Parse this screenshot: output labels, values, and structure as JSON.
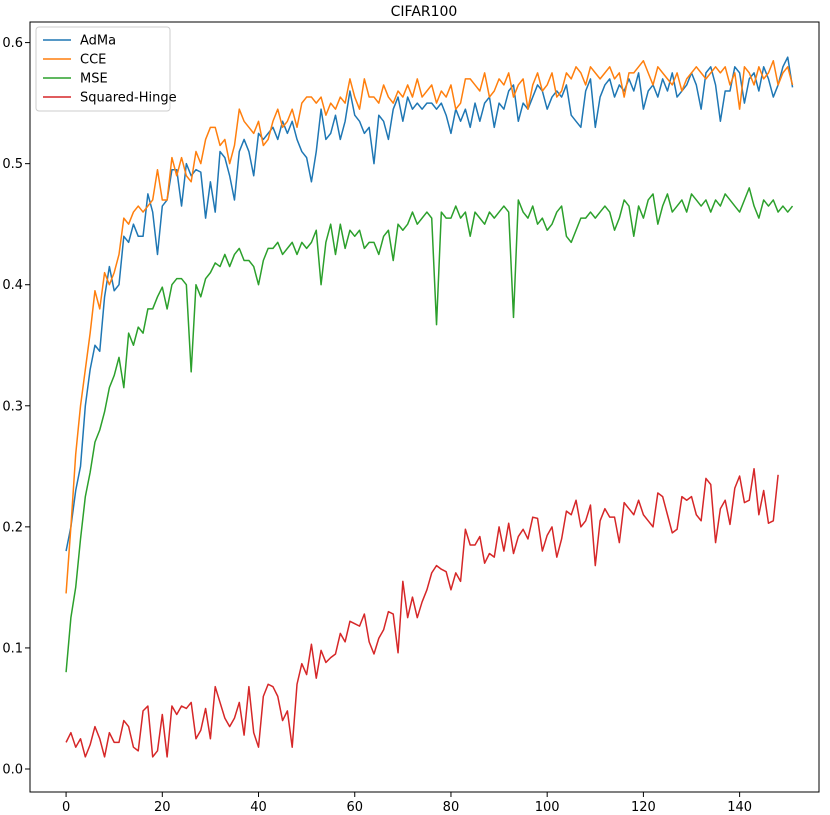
{
  "chart_data": {
    "type": "line",
    "title": "CIFAR100",
    "xlabel": "",
    "ylabel": "",
    "xlim": [
      -7.5,
      156.5
    ],
    "ylim": [
      -0.019,
      0.617
    ],
    "xticks": [
      0,
      20,
      40,
      60,
      80,
      100,
      120,
      140
    ],
    "yticks": [
      0.0,
      0.1,
      0.2,
      0.3,
      0.4,
      0.5,
      0.6
    ],
    "grid": false,
    "legend": "top-left",
    "colors": {
      "AdMa": "#1f77b4",
      "CCE": "#ff7f0e",
      "MSE": "#2ca02c",
      "Squared-Hinge": "#d62728"
    },
    "series": [
      {
        "name": "AdMa",
        "values": [
          0.18,
          0.2,
          0.23,
          0.25,
          0.3,
          0.33,
          0.35,
          0.345,
          0.39,
          0.415,
          0.395,
          0.4,
          0.44,
          0.435,
          0.45,
          0.44,
          0.44,
          0.475,
          0.46,
          0.425,
          0.465,
          0.47,
          0.495,
          0.495,
          0.465,
          0.5,
          0.49,
          0.495,
          0.493,
          0.455,
          0.485,
          0.46,
          0.51,
          0.505,
          0.49,
          0.47,
          0.51,
          0.52,
          0.51,
          0.49,
          0.525,
          0.52,
          0.525,
          0.53,
          0.52,
          0.535,
          0.525,
          0.535,
          0.52,
          0.51,
          0.505,
          0.485,
          0.51,
          0.545,
          0.52,
          0.525,
          0.54,
          0.52,
          0.535,
          0.56,
          0.54,
          0.535,
          0.525,
          0.53,
          0.5,
          0.54,
          0.535,
          0.52,
          0.545,
          0.555,
          0.535,
          0.555,
          0.545,
          0.55,
          0.545,
          0.55,
          0.55,
          0.545,
          0.55,
          0.54,
          0.525,
          0.545,
          0.535,
          0.545,
          0.53,
          0.55,
          0.535,
          0.55,
          0.555,
          0.53,
          0.55,
          0.545,
          0.56,
          0.565,
          0.535,
          0.55,
          0.545,
          0.555,
          0.565,
          0.56,
          0.545,
          0.555,
          0.56,
          0.555,
          0.565,
          0.54,
          0.535,
          0.53,
          0.56,
          0.57,
          0.53,
          0.555,
          0.565,
          0.57,
          0.555,
          0.565,
          0.56,
          0.57,
          0.56,
          0.575,
          0.545,
          0.56,
          0.565,
          0.555,
          0.57,
          0.56,
          0.575,
          0.555,
          0.56,
          0.565,
          0.575,
          0.565,
          0.545,
          0.575,
          0.58,
          0.565,
          0.535,
          0.56,
          0.56,
          0.58,
          0.575,
          0.55,
          0.57,
          0.575,
          0.56,
          0.58,
          0.57,
          0.555,
          0.565,
          0.58,
          0.588,
          0.563
        ]
      },
      {
        "name": "CCE",
        "values": [
          0.145,
          0.2,
          0.26,
          0.3,
          0.33,
          0.36,
          0.395,
          0.38,
          0.41,
          0.4,
          0.41,
          0.425,
          0.455,
          0.45,
          0.46,
          0.465,
          0.46,
          0.465,
          0.47,
          0.495,
          0.47,
          0.47,
          0.505,
          0.49,
          0.505,
          0.49,
          0.485,
          0.51,
          0.5,
          0.52,
          0.53,
          0.53,
          0.515,
          0.52,
          0.5,
          0.515,
          0.545,
          0.535,
          0.53,
          0.525,
          0.535,
          0.515,
          0.52,
          0.535,
          0.545,
          0.53,
          0.535,
          0.545,
          0.53,
          0.55,
          0.555,
          0.555,
          0.55,
          0.555,
          0.54,
          0.55,
          0.545,
          0.555,
          0.55,
          0.57,
          0.555,
          0.545,
          0.57,
          0.555,
          0.555,
          0.55,
          0.565,
          0.555,
          0.55,
          0.56,
          0.555,
          0.565,
          0.555,
          0.57,
          0.555,
          0.56,
          0.565,
          0.55,
          0.56,
          0.555,
          0.565,
          0.545,
          0.55,
          0.57,
          0.57,
          0.565,
          0.56,
          0.575,
          0.555,
          0.56,
          0.57,
          0.565,
          0.575,
          0.555,
          0.565,
          0.57,
          0.545,
          0.565,
          0.575,
          0.56,
          0.565,
          0.575,
          0.555,
          0.56,
          0.575,
          0.57,
          0.58,
          0.575,
          0.565,
          0.58,
          0.575,
          0.57,
          0.575,
          0.58,
          0.57,
          0.575,
          0.555,
          0.575,
          0.575,
          0.58,
          0.585,
          0.575,
          0.565,
          0.58,
          0.575,
          0.57,
          0.565,
          0.575,
          0.56,
          0.57,
          0.575,
          0.58,
          0.575,
          0.57,
          0.575,
          0.58,
          0.575,
          0.58,
          0.565,
          0.575,
          0.545,
          0.58,
          0.575,
          0.565,
          0.58,
          0.57,
          0.575,
          0.585,
          0.565,
          0.575,
          0.58,
          0.565
        ]
      },
      {
        "name": "MSE",
        "values": [
          0.08,
          0.125,
          0.15,
          0.19,
          0.225,
          0.245,
          0.27,
          0.28,
          0.295,
          0.315,
          0.325,
          0.34,
          0.315,
          0.36,
          0.35,
          0.365,
          0.36,
          0.38,
          0.38,
          0.39,
          0.398,
          0.38,
          0.4,
          0.405,
          0.405,
          0.4,
          0.328,
          0.4,
          0.39,
          0.405,
          0.41,
          0.418,
          0.415,
          0.425,
          0.415,
          0.425,
          0.43,
          0.42,
          0.42,
          0.415,
          0.4,
          0.42,
          0.43,
          0.43,
          0.435,
          0.425,
          0.43,
          0.435,
          0.425,
          0.435,
          0.43,
          0.435,
          0.445,
          0.4,
          0.435,
          0.45,
          0.425,
          0.45,
          0.43,
          0.445,
          0.44,
          0.445,
          0.43,
          0.435,
          0.435,
          0.425,
          0.44,
          0.445,
          0.42,
          0.45,
          0.445,
          0.45,
          0.46,
          0.45,
          0.455,
          0.46,
          0.455,
          0.367,
          0.46,
          0.455,
          0.455,
          0.465,
          0.455,
          0.46,
          0.44,
          0.46,
          0.455,
          0.45,
          0.46,
          0.455,
          0.46,
          0.465,
          0.46,
          0.373,
          0.47,
          0.46,
          0.455,
          0.465,
          0.45,
          0.455,
          0.445,
          0.45,
          0.46,
          0.465,
          0.44,
          0.435,
          0.445,
          0.455,
          0.455,
          0.46,
          0.455,
          0.46,
          0.465,
          0.46,
          0.445,
          0.455,
          0.47,
          0.465,
          0.44,
          0.465,
          0.455,
          0.47,
          0.475,
          0.45,
          0.465,
          0.475,
          0.46,
          0.465,
          0.47,
          0.46,
          0.475,
          0.47,
          0.465,
          0.47,
          0.46,
          0.47,
          0.465,
          0.475,
          0.47,
          0.465,
          0.46,
          0.47,
          0.48,
          0.465,
          0.455,
          0.47,
          0.465,
          0.47,
          0.46,
          0.465,
          0.46,
          0.465
        ]
      },
      {
        "name": "Squared-Hinge",
        "values": [
          0.022,
          0.03,
          0.018,
          0.025,
          0.01,
          0.02,
          0.035,
          0.025,
          0.01,
          0.03,
          0.022,
          0.022,
          0.04,
          0.035,
          0.018,
          0.015,
          0.048,
          0.052,
          0.01,
          0.015,
          0.045,
          0.01,
          0.052,
          0.045,
          0.052,
          0.05,
          0.055,
          0.025,
          0.032,
          0.05,
          0.025,
          0.068,
          0.055,
          0.042,
          0.035,
          0.042,
          0.055,
          0.028,
          0.068,
          0.03,
          0.018,
          0.06,
          0.07,
          0.068,
          0.06,
          0.04,
          0.048,
          0.018,
          0.07,
          0.087,
          0.078,
          0.103,
          0.075,
          0.098,
          0.088,
          0.092,
          0.095,
          0.112,
          0.105,
          0.122,
          0.12,
          0.118,
          0.128,
          0.105,
          0.095,
          0.108,
          0.115,
          0.13,
          0.128,
          0.096,
          0.155,
          0.125,
          0.142,
          0.125,
          0.138,
          0.148,
          0.162,
          0.168,
          0.165,
          0.163,
          0.148,
          0.162,
          0.155,
          0.198,
          0.185,
          0.185,
          0.192,
          0.17,
          0.178,
          0.175,
          0.2,
          0.18,
          0.203,
          0.178,
          0.192,
          0.198,
          0.19,
          0.208,
          0.207,
          0.18,
          0.193,
          0.2,
          0.175,
          0.19,
          0.213,
          0.21,
          0.222,
          0.2,
          0.205,
          0.218,
          0.168,
          0.205,
          0.215,
          0.208,
          0.208,
          0.187,
          0.22,
          0.215,
          0.21,
          0.222,
          0.21,
          0.205,
          0.2,
          0.228,
          0.225,
          0.21,
          0.195,
          0.198,
          0.225,
          0.222,
          0.225,
          0.21,
          0.205,
          0.24,
          0.235,
          0.187,
          0.215,
          0.222,
          0.202,
          0.232,
          0.242,
          0.22,
          0.222,
          0.248,
          0.21,
          0.23,
          0.203,
          0.205,
          0.243
        ]
      }
    ]
  }
}
